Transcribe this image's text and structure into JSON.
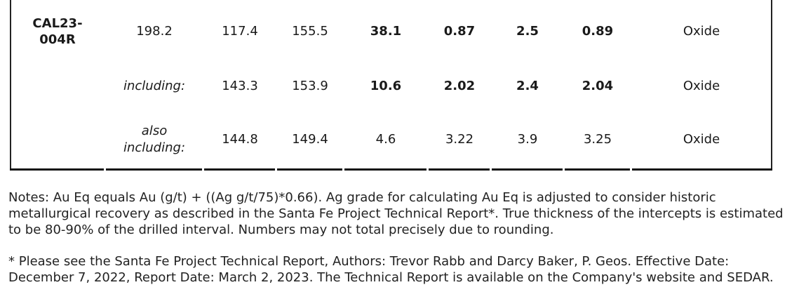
{
  "table": {
    "rows": [
      {
        "hole_id": "CAL23-\n004R",
        "label": "198.2",
        "from": "117.4",
        "to": "155.5",
        "length": "38.1",
        "au": "0.87",
        "ag": "2.5",
        "au_eq": "0.89",
        "type": "Oxide"
      },
      {
        "hole_id": "",
        "label": "including:",
        "from": "143.3",
        "to": "153.9",
        "length": "10.6",
        "au": "2.02",
        "ag": "2.4",
        "au_eq": "2.04",
        "type": "Oxide"
      },
      {
        "hole_id": "",
        "label": "also\nincluding:",
        "from": "144.8",
        "to": "149.4",
        "length": "4.6",
        "au": "3.22",
        "ag": "3.9",
        "au_eq": "3.25",
        "type": "Oxide"
      }
    ]
  },
  "notes": {
    "note_1": "Notes: Au Eq equals Au (g/t) + ((Ag g/t/75)*0.66). Ag grade for calculating Au Eq is adjusted to consider historic metallurgical recovery as described in the Santa Fe Project Technical Report*. True thickness of the intercepts is estimated to be 80-90% of the drilled interval. Numbers may not total precisely due to rounding.",
    "note_2": "* Please see the Santa Fe Project Technical Report, Authors: Trevor Rabb and Darcy Baker, P. Geos. Effective Date: December 7, 2022, Report Date: March 2, 2023. The Technical Report is available on the Company's website and SEDAR."
  }
}
